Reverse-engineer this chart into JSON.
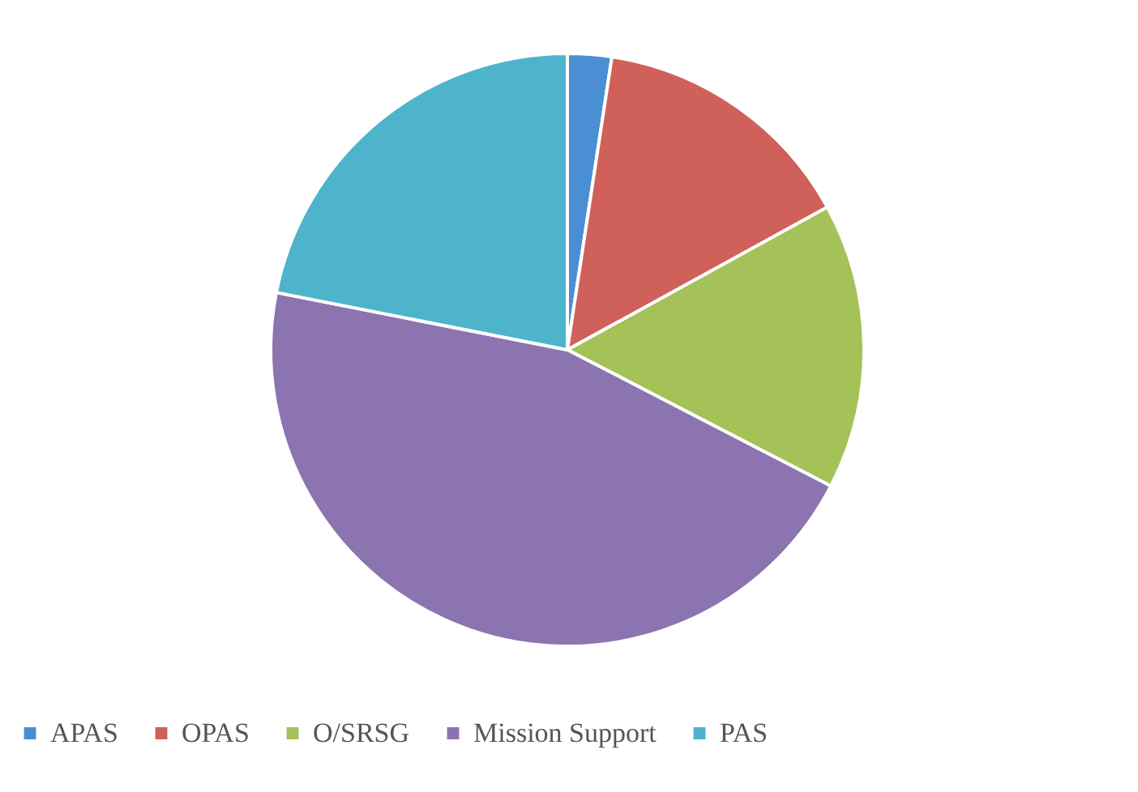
{
  "chart_data": {
    "type": "pie",
    "categories": [
      "APAS",
      "OPAS",
      "O/SRSG",
      "Mission Support",
      "PAS"
    ],
    "values": [
      2.4,
      14.6,
      15.6,
      45.5,
      21.9
    ],
    "colors": [
      "#4a8fd4",
      "#d0605a",
      "#a4c257",
      "#8c74b0",
      "#4db4cc"
    ],
    "legend": "bottom"
  }
}
